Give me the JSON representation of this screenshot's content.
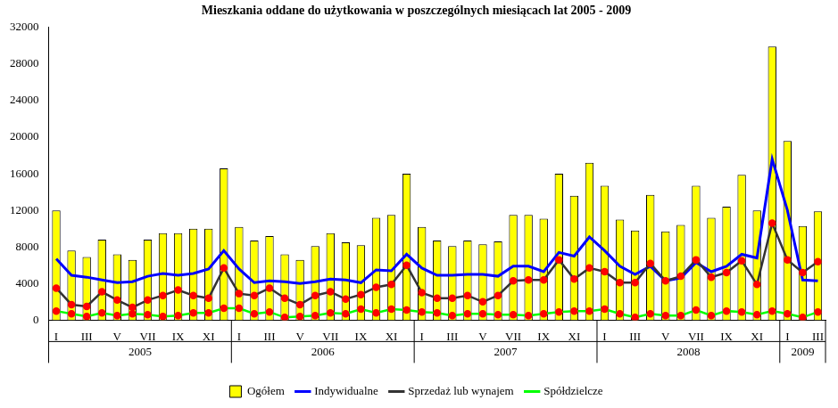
{
  "chart_data": {
    "type": "bar",
    "title": "Mieszkania oddane do użytkowania w poszczególnych miesiącach lat 2005 - 2009",
    "categories": [
      "I",
      null,
      "III",
      null,
      "V",
      null,
      "VII",
      null,
      "IX",
      null,
      "XI",
      null,
      "I",
      null,
      "III",
      null,
      "V",
      null,
      "VII",
      null,
      "IX",
      null,
      "XI",
      null,
      "I",
      null,
      "III",
      null,
      "V",
      null,
      "VII",
      null,
      "IX",
      null,
      "XI",
      null,
      "I",
      null,
      "III",
      null,
      "V",
      null,
      "VII",
      null,
      "IX",
      null,
      "XI",
      null,
      "I",
      null,
      "III"
    ],
    "groups": [
      {
        "label": "2005",
        "count": 12
      },
      {
        "label": "2006",
        "count": 12
      },
      {
        "label": "2007",
        "count": 12
      },
      {
        "label": "2008",
        "count": 12
      },
      {
        "label": "2009",
        "count": 3
      }
    ],
    "series": [
      {
        "name": "Ogółem",
        "type": "bar",
        "color": "#ffff00",
        "values": [
          12000,
          7600,
          6900,
          8800,
          7200,
          6600,
          8800,
          9500,
          9500,
          10000,
          10000,
          16600,
          10200,
          8700,
          9200,
          7200,
          6600,
          8100,
          9500,
          8500,
          8200,
          11200,
          11500,
          16000,
          10200,
          8700,
          8100,
          8700,
          8300,
          8600,
          11500,
          11500,
          11100,
          16000,
          13600,
          17200,
          14700,
          11000,
          9800,
          13700,
          9700,
          10400,
          14700,
          11200,
          12400,
          15900,
          12000,
          29900,
          19600,
          10300,
          11900
        ]
      },
      {
        "name": "Indywidualne",
        "type": "line",
        "color": "#0000ff",
        "marker": "none",
        "line_style": "solid",
        "values": [
          6700,
          4900,
          4700,
          4400,
          4100,
          4200,
          4800,
          5100,
          4900,
          5100,
          5600,
          7600,
          5600,
          4100,
          4300,
          4200,
          4000,
          4200,
          4500,
          4400,
          4100,
          5500,
          5400,
          7200,
          5700,
          4900,
          4900,
          5000,
          5000,
          4800,
          5900,
          5900,
          5300,
          7400,
          7000,
          9100,
          7600,
          5900,
          5000,
          5900,
          4300,
          4600,
          6300,
          5300,
          5900,
          7200,
          6800,
          17600,
          12000,
          4400,
          4300
        ]
      },
      {
        "name": "Sprzedaż lub wynajem",
        "type": "line",
        "color": "#333333",
        "marker": "circle",
        "line_style": "solid",
        "values": [
          3500,
          1700,
          1500,
          3100,
          2200,
          1400,
          2200,
          2700,
          3300,
          2700,
          2400,
          5700,
          2900,
          2700,
          3500,
          2400,
          1700,
          2700,
          3100,
          2300,
          2800,
          3600,
          3900,
          6000,
          3000,
          2400,
          2400,
          2700,
          2000,
          2700,
          4300,
          4400,
          4400,
          6600,
          4500,
          5700,
          5300,
          4100,
          4100,
          6200,
          4300,
          4800,
          6600,
          4700,
          5200,
          6500,
          3900,
          10600,
          6600,
          5200,
          6400
        ]
      },
      {
        "name": "Spółdzielcze",
        "type": "line",
        "color": "#00ff00",
        "marker": "circle",
        "line_style": "solid",
        "values": [
          1000,
          700,
          400,
          800,
          500,
          700,
          600,
          400,
          500,
          800,
          800,
          1300,
          1300,
          700,
          900,
          300,
          400,
          500,
          800,
          700,
          1200,
          800,
          1200,
          1100,
          900,
          800,
          500,
          700,
          700,
          600,
          600,
          500,
          700,
          900,
          1000,
          1000,
          1200,
          700,
          300,
          700,
          500,
          500,
          1100,
          500,
          1000,
          900,
          600,
          1000,
          700,
          300,
          900
        ]
      }
    ],
    "ylim": [
      0,
      32000
    ],
    "yticks": [
      0,
      4000,
      8000,
      12000,
      16000,
      20000,
      24000,
      28000,
      32000
    ],
    "grid": false,
    "legend": "bottom"
  }
}
